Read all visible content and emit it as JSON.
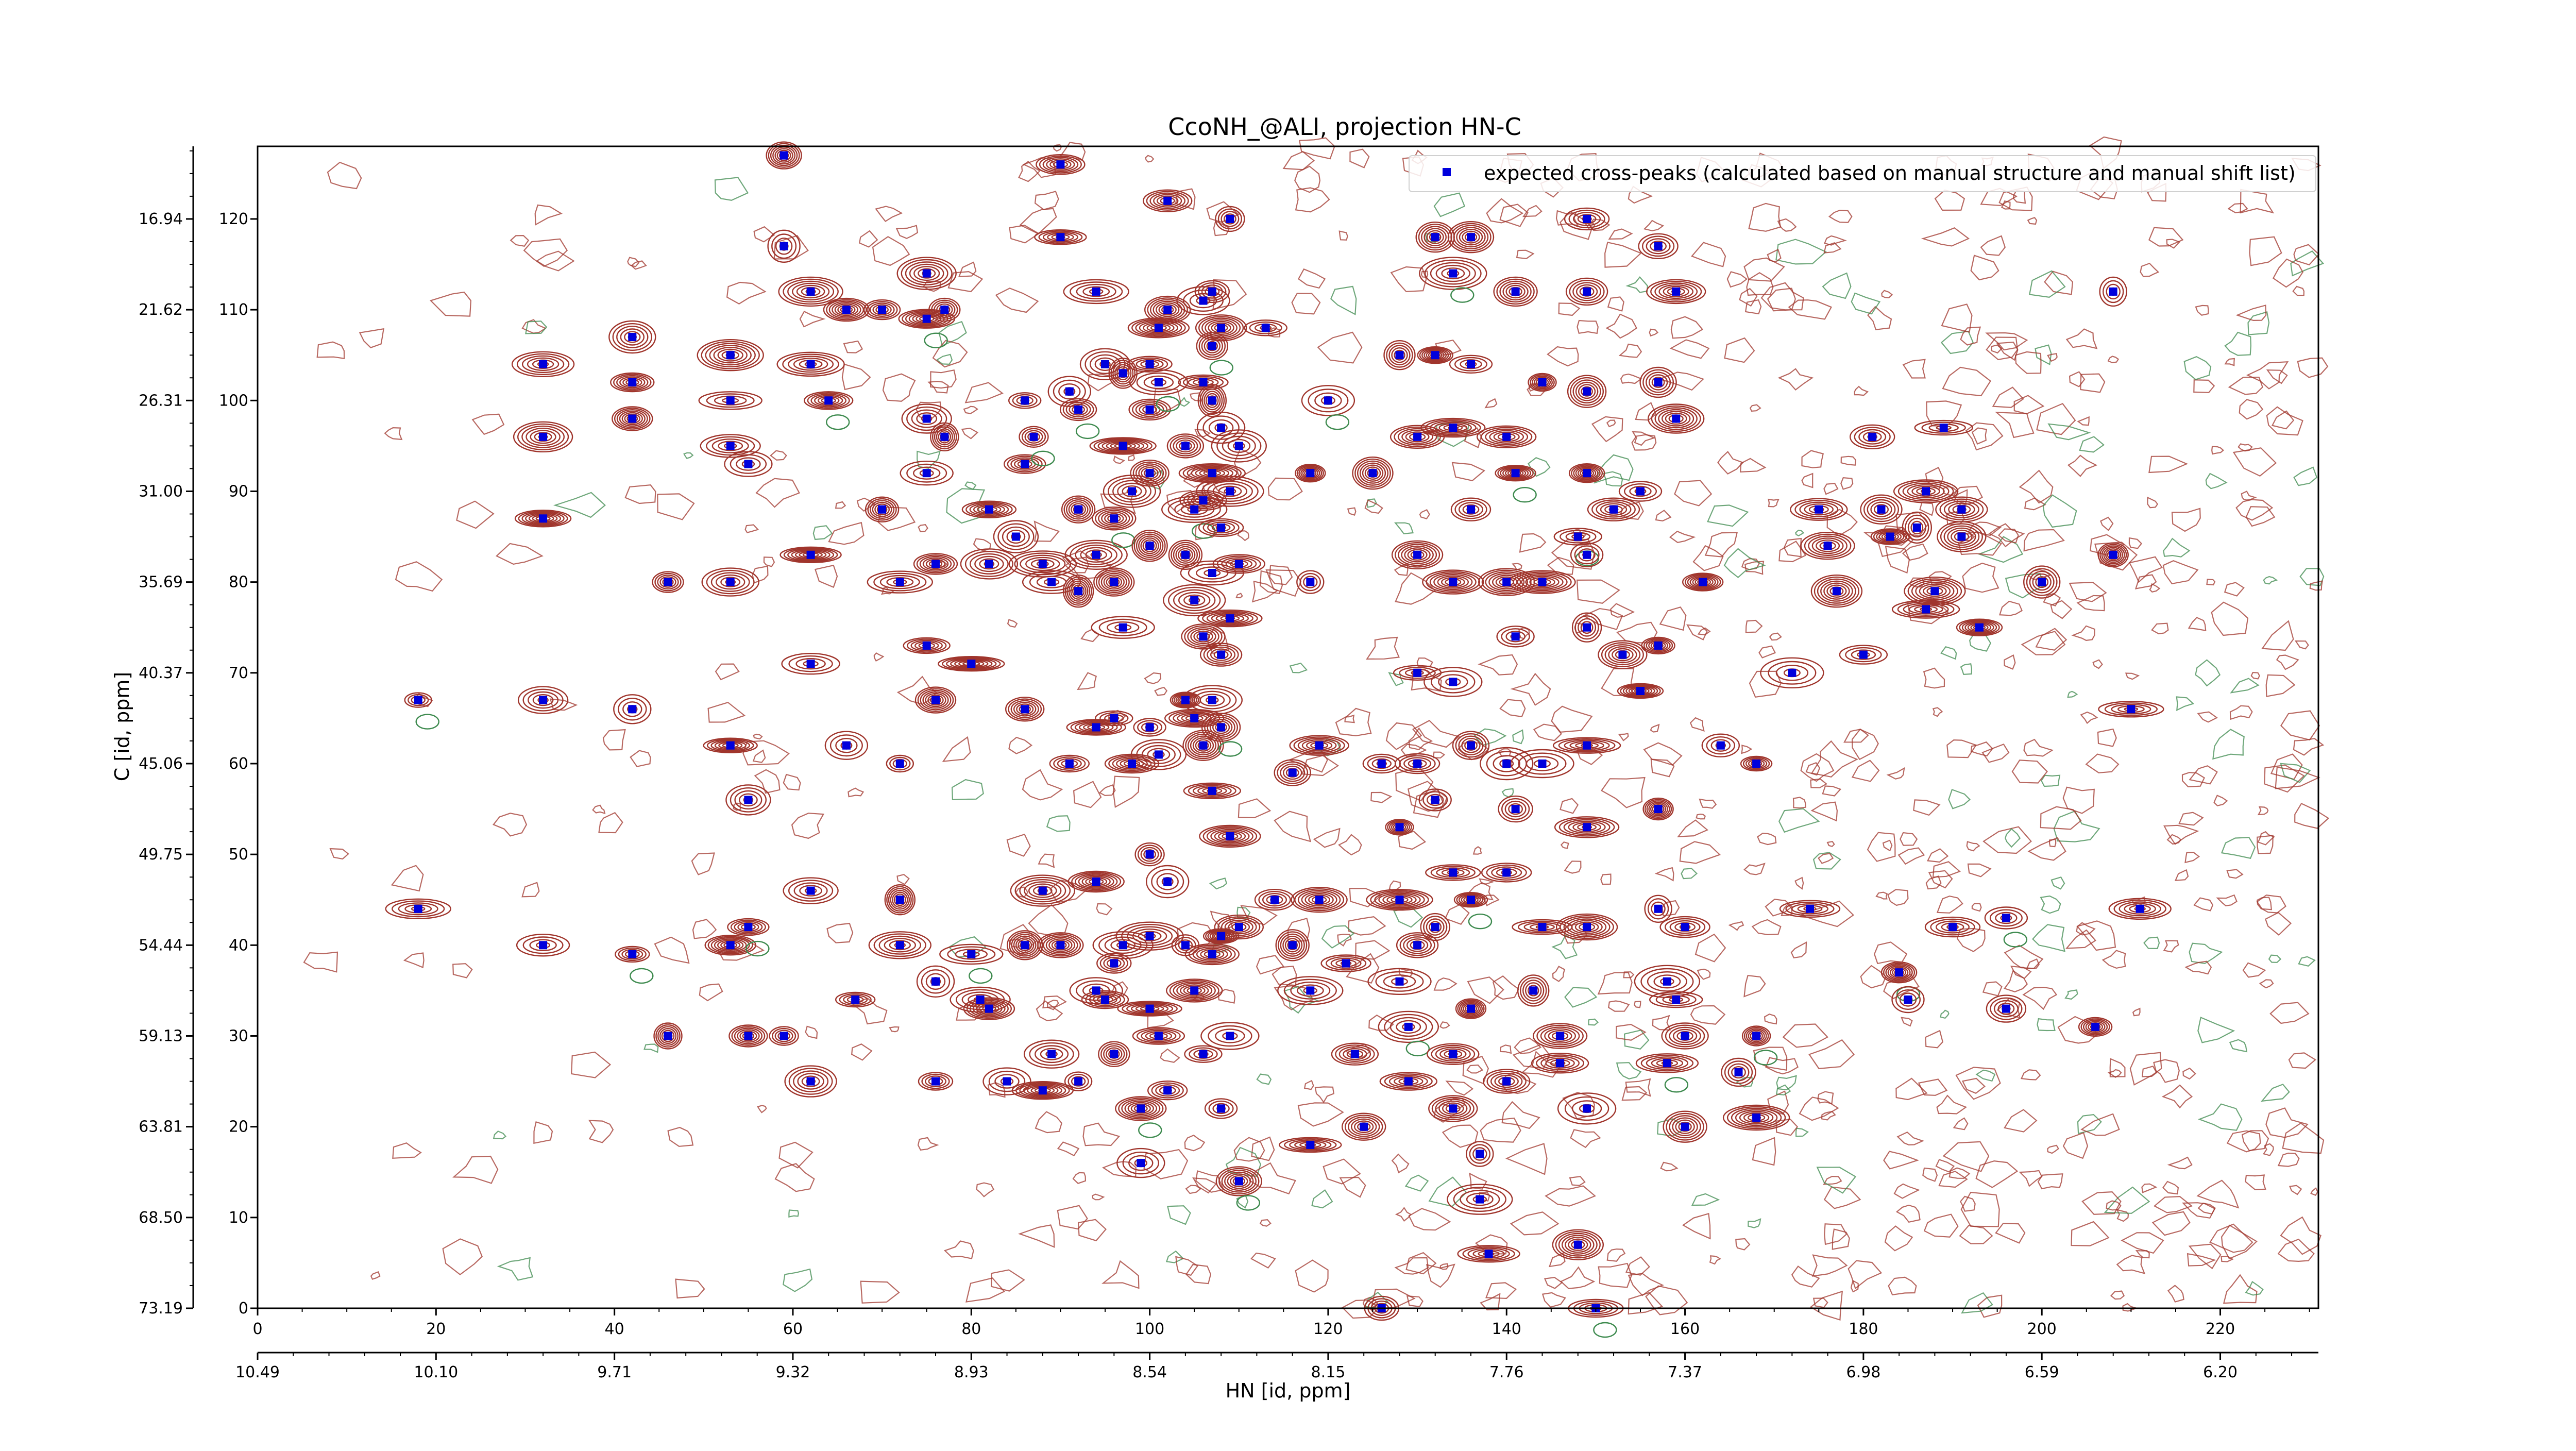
{
  "chart_data": {
    "type": "scatter",
    "title": "CcoNH_@ALI, projection HN-C",
    "xlabel_bottom": "HN [id, ppm]",
    "ylabel_left": "C [id, ppm]",
    "x_index_range": [
      0,
      231
    ],
    "y_index_range": [
      0,
      128
    ],
    "x_index_ticks": [
      0,
      20,
      40,
      60,
      80,
      100,
      120,
      140,
      160,
      180,
      200,
      220
    ],
    "y_index_ticks": [
      0,
      10,
      20,
      30,
      40,
      50,
      60,
      70,
      80,
      90,
      100,
      110,
      120
    ],
    "x_ppm_ticks": [
      "10.49",
      "10.10",
      "9.71",
      "9.32",
      "8.93",
      "8.54",
      "8.15",
      "7.76",
      "7.37",
      "6.98",
      "6.59",
      "6.20"
    ],
    "y_ppm_ticks": [
      "73.19",
      "68.50",
      "63.81",
      "59.13",
      "54.44",
      "49.75",
      "45.06",
      "40.37",
      "35.69",
      "31.00",
      "26.31",
      "21.62",
      "16.94"
    ],
    "legend": {
      "label": "expected cross-peaks (calculated based on manual structure and manual shift list)",
      "placement": "top-right"
    },
    "colors": {
      "positive_contours": "#a0352c",
      "negative_contours": "#3d8a4e",
      "peaks": "#0000dd"
    },
    "peaks": [
      [
        18,
        67
      ],
      [
        18,
        44
      ],
      [
        32,
        104
      ],
      [
        32,
        96
      ],
      [
        32,
        87
      ],
      [
        32,
        40
      ],
      [
        32,
        67
      ],
      [
        42,
        107
      ],
      [
        42,
        102
      ],
      [
        42,
        98
      ],
      [
        42,
        66
      ],
      [
        42,
        39
      ],
      [
        46,
        80
      ],
      [
        46,
        30
      ],
      [
        53,
        105
      ],
      [
        53,
        100
      ],
      [
        53,
        95
      ],
      [
        53,
        80
      ],
      [
        53,
        62
      ],
      [
        53,
        40
      ],
      [
        55,
        93
      ],
      [
        55,
        56
      ],
      [
        55,
        42
      ],
      [
        55,
        30
      ],
      [
        59,
        127
      ],
      [
        59,
        117
      ],
      [
        59,
        30
      ],
      [
        62,
        104
      ],
      [
        62,
        112
      ],
      [
        62,
        83
      ],
      [
        62,
        71
      ],
      [
        62,
        46
      ],
      [
        62,
        25
      ],
      [
        64,
        100
      ],
      [
        66,
        110
      ],
      [
        66,
        62
      ],
      [
        67,
        34
      ],
      [
        70,
        110
      ],
      [
        70,
        88
      ],
      [
        72,
        45
      ],
      [
        72,
        60
      ],
      [
        72,
        80
      ],
      [
        72,
        40
      ],
      [
        75,
        114
      ],
      [
        75,
        109
      ],
      [
        75,
        92
      ],
      [
        75,
        98
      ],
      [
        75,
        73
      ],
      [
        76,
        82
      ],
      [
        76,
        67
      ],
      [
        76,
        36
      ],
      [
        76,
        25
      ],
      [
        77,
        110
      ],
      [
        77,
        96
      ],
      [
        80,
        71
      ],
      [
        80,
        39
      ],
      [
        81,
        34
      ],
      [
        82,
        82
      ],
      [
        82,
        88
      ],
      [
        82,
        33
      ],
      [
        84,
        25
      ],
      [
        85,
        85
      ],
      [
        86,
        93
      ],
      [
        86,
        66
      ],
      [
        86,
        40
      ],
      [
        86,
        100
      ],
      [
        87,
        96
      ],
      [
        88,
        82
      ],
      [
        88,
        46
      ],
      [
        88,
        24
      ],
      [
        89,
        80
      ],
      [
        89,
        28
      ],
      [
        90,
        118
      ],
      [
        90,
        126
      ],
      [
        90,
        40
      ],
      [
        91,
        101
      ],
      [
        91,
        60
      ],
      [
        92,
        99
      ],
      [
        92,
        88
      ],
      [
        92,
        79
      ],
      [
        92,
        25
      ],
      [
        94,
        112
      ],
      [
        94,
        83
      ],
      [
        94,
        64
      ],
      [
        94,
        47
      ],
      [
        94,
        35
      ],
      [
        95,
        104
      ],
      [
        95,
        34
      ],
      [
        96,
        87
      ],
      [
        96,
        80
      ],
      [
        96,
        65
      ],
      [
        96,
        38
      ],
      [
        96,
        28
      ],
      [
        97,
        103
      ],
      [
        97,
        95
      ],
      [
        97,
        75
      ],
      [
        97,
        40
      ],
      [
        98,
        90
      ],
      [
        98,
        60
      ],
      [
        99,
        22
      ],
      [
        99,
        16
      ],
      [
        100,
        104
      ],
      [
        100,
        99
      ],
      [
        100,
        92
      ],
      [
        100,
        84
      ],
      [
        100,
        64
      ],
      [
        100,
        50
      ],
      [
        100,
        41
      ],
      [
        100,
        33
      ],
      [
        101,
        108
      ],
      [
        101,
        102
      ],
      [
        101,
        61
      ],
      [
        101,
        30
      ],
      [
        102,
        122
      ],
      [
        102,
        110
      ],
      [
        102,
        47
      ],
      [
        102,
        24
      ],
      [
        104,
        95
      ],
      [
        104,
        83
      ],
      [
        104,
        67
      ],
      [
        104,
        40
      ],
      [
        105,
        88
      ],
      [
        105,
        78
      ],
      [
        105,
        65
      ],
      [
        105,
        35
      ],
      [
        106,
        111
      ],
      [
        106,
        102
      ],
      [
        106,
        89
      ],
      [
        106,
        74
      ],
      [
        106,
        62
      ],
      [
        106,
        28
      ],
      [
        107,
        112
      ],
      [
        107,
        106
      ],
      [
        107,
        100
      ],
      [
        107,
        92
      ],
      [
        107,
        81
      ],
      [
        107,
        67
      ],
      [
        107,
        57
      ],
      [
        107,
        39
      ],
      [
        108,
        108
      ],
      [
        108,
        97
      ],
      [
        108,
        86
      ],
      [
        108,
        72
      ],
      [
        108,
        64
      ],
      [
        108,
        41
      ],
      [
        108,
        22
      ],
      [
        109,
        120
      ],
      [
        109,
        90
      ],
      [
        109,
        76
      ],
      [
        109,
        52
      ],
      [
        109,
        30
      ],
      [
        110,
        95
      ],
      [
        110,
        82
      ],
      [
        110,
        42
      ],
      [
        110,
        14
      ],
      [
        113,
        108
      ],
      [
        114,
        45
      ],
      [
        116,
        59
      ],
      [
        116,
        40
      ],
      [
        118,
        92
      ],
      [
        118,
        80
      ],
      [
        118,
        35
      ],
      [
        118,
        18
      ],
      [
        119,
        62
      ],
      [
        119,
        45
      ],
      [
        120,
        100
      ],
      [
        122,
        38
      ],
      [
        123,
        28
      ],
      [
        124,
        20
      ],
      [
        125,
        92
      ],
      [
        126,
        60
      ],
      [
        126,
        0
      ],
      [
        128,
        105
      ],
      [
        128,
        53
      ],
      [
        128,
        45
      ],
      [
        128,
        36
      ],
      [
        129,
        31
      ],
      [
        129,
        25
      ],
      [
        130,
        96
      ],
      [
        130,
        83
      ],
      [
        130,
        70
      ],
      [
        130,
        60
      ],
      [
        130,
        40
      ],
      [
        132,
        118
      ],
      [
        132,
        105
      ],
      [
        132,
        56
      ],
      [
        132,
        42
      ],
      [
        134,
        114
      ],
      [
        134,
        97
      ],
      [
        134,
        80
      ],
      [
        134,
        69
      ],
      [
        134,
        48
      ],
      [
        134,
        28
      ],
      [
        134,
        22
      ],
      [
        136,
        118
      ],
      [
        136,
        104
      ],
      [
        136,
        88
      ],
      [
        136,
        62
      ],
      [
        136,
        45
      ],
      [
        136,
        33
      ],
      [
        137,
        17
      ],
      [
        137,
        12
      ],
      [
        138,
        6
      ],
      [
        140,
        96
      ],
      [
        140,
        80
      ],
      [
        140,
        60
      ],
      [
        140,
        48
      ],
      [
        140,
        25
      ],
      [
        141,
        112
      ],
      [
        141,
        92
      ],
      [
        141,
        74
      ],
      [
        141,
        55
      ],
      [
        143,
        35
      ],
      [
        144,
        102
      ],
      [
        144,
        80
      ],
      [
        144,
        60
      ],
      [
        144,
        42
      ],
      [
        146,
        27
      ],
      [
        146,
        30
      ],
      [
        148,
        7
      ],
      [
        148,
        85
      ],
      [
        149,
        120
      ],
      [
        149,
        112
      ],
      [
        149,
        101
      ],
      [
        149,
        92
      ],
      [
        149,
        83
      ],
      [
        149,
        75
      ],
      [
        149,
        62
      ],
      [
        149,
        53
      ],
      [
        149,
        42
      ],
      [
        149,
        22
      ],
      [
        150,
        0
      ],
      [
        152,
        88
      ],
      [
        153,
        72
      ],
      [
        155,
        68
      ],
      [
        155,
        90
      ],
      [
        157,
        117
      ],
      [
        157,
        102
      ],
      [
        157,
        73
      ],
      [
        157,
        55
      ],
      [
        157,
        44
      ],
      [
        158,
        36
      ],
      [
        158,
        27
      ],
      [
        159,
        112
      ],
      [
        159,
        98
      ],
      [
        159,
        34
      ],
      [
        160,
        42
      ],
      [
        160,
        30
      ],
      [
        160,
        20
      ],
      [
        162,
        80
      ],
      [
        164,
        62
      ],
      [
        166,
        26
      ],
      [
        168,
        60
      ],
      [
        168,
        30
      ],
      [
        168,
        21
      ],
      [
        172,
        70
      ],
      [
        174,
        44
      ],
      [
        175,
        88
      ],
      [
        176,
        84
      ],
      [
        177,
        79
      ],
      [
        180,
        72
      ],
      [
        181,
        96
      ],
      [
        182,
        88
      ],
      [
        183,
        85
      ],
      [
        184,
        37
      ],
      [
        185,
        34
      ],
      [
        186,
        86
      ],
      [
        187,
        77
      ],
      [
        187,
        90
      ],
      [
        188,
        79
      ],
      [
        189,
        97
      ],
      [
        190,
        42
      ],
      [
        191,
        88
      ],
      [
        191,
        85
      ],
      [
        193,
        75
      ],
      [
        196,
        43
      ],
      [
        196,
        33
      ],
      [
        200,
        80
      ],
      [
        206,
        31
      ],
      [
        208,
        83
      ],
      [
        208,
        112
      ],
      [
        210,
        66
      ],
      [
        211,
        44
      ]
    ]
  }
}
